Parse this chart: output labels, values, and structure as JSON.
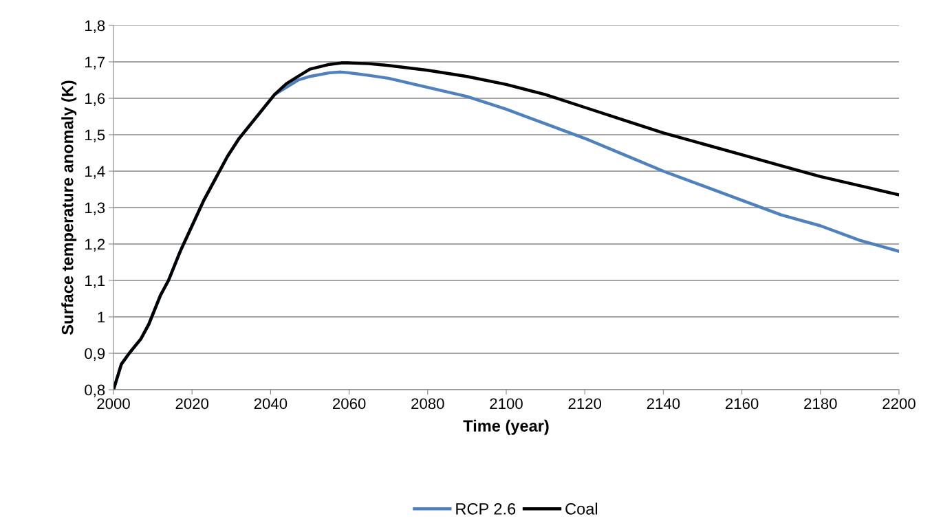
{
  "chart_data": {
    "type": "line",
    "xlabel": "Time (year)",
    "ylabel": "Surface temperature anomaly (K)",
    "xlim": [
      2000,
      2200
    ],
    "xticks": [
      2000,
      2020,
      2040,
      2060,
      2080,
      2100,
      2120,
      2140,
      2160,
      2180,
      2200
    ],
    "ylim": [
      0.8,
      1.8
    ],
    "yticks": [
      {
        "value": 0.8,
        "label": "0,8"
      },
      {
        "value": 0.9,
        "label": "0,9"
      },
      1,
      {
        "value": 1.1,
        "label": "1,1"
      },
      {
        "value": 1.2,
        "label": "1,2"
      },
      {
        "value": 1.3,
        "label": "1,3"
      },
      {
        "value": 1.4,
        "label": "1,4"
      },
      {
        "value": 1.5,
        "label": "1,5"
      },
      {
        "value": 1.6,
        "label": "1,6"
      },
      {
        "value": 1.7,
        "label": "1,7"
      },
      {
        "value": 1.8,
        "label": "1,8"
      }
    ],
    "grid": "y",
    "legend": "bottom",
    "marker": "none",
    "line_style": "solid",
    "x": [
      2000,
      2002,
      2004,
      2007,
      2009,
      2012,
      2014,
      2017,
      2020,
      2023,
      2026,
      2029,
      2032,
      2035,
      2038,
      2041,
      2044,
      2047,
      2050,
      2055,
      2058,
      2060,
      2065,
      2070,
      2080,
      2090,
      2100,
      2110,
      2120,
      2130,
      2140,
      2150,
      2160,
      2170,
      2180,
      2190,
      2200
    ],
    "series": [
      {
        "name": "RCP 2.6",
        "color": "#4f81bd",
        "values": [
          0.8,
          0.87,
          0.9,
          0.94,
          0.98,
          1.06,
          1.1,
          1.18,
          1.25,
          1.32,
          1.38,
          1.44,
          1.49,
          1.53,
          1.57,
          1.61,
          1.63,
          1.65,
          1.66,
          1.67,
          1.672,
          1.67,
          1.663,
          1.655,
          1.63,
          1.605,
          1.57,
          1.53,
          1.49,
          1.445,
          1.4,
          1.36,
          1.32,
          1.28,
          1.25,
          1.21,
          1.18
        ]
      },
      {
        "name": "Coal",
        "color": "#000000",
        "values": [
          0.8,
          0.87,
          0.9,
          0.94,
          0.98,
          1.06,
          1.1,
          1.18,
          1.25,
          1.32,
          1.38,
          1.44,
          1.49,
          1.53,
          1.57,
          1.61,
          1.64,
          1.66,
          1.68,
          1.693,
          1.697,
          1.697,
          1.695,
          1.69,
          1.677,
          1.66,
          1.638,
          1.61,
          1.575,
          1.54,
          1.505,
          1.475,
          1.445,
          1.415,
          1.385,
          1.36,
          1.335
        ]
      }
    ]
  }
}
